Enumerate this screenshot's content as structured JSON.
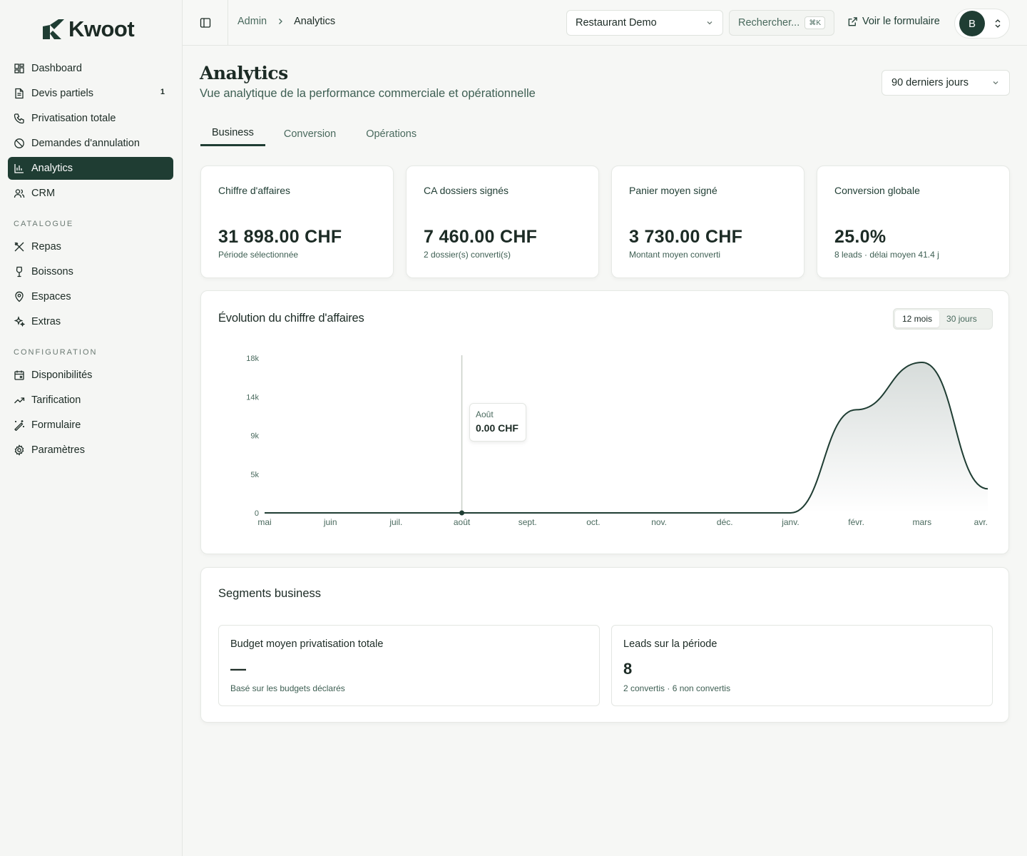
{
  "app": {
    "logo_text": "Kwoot"
  },
  "sidebar": {
    "items": [
      {
        "label": "Dashboard",
        "icon": "dashboard-icon"
      },
      {
        "label": "Devis partiels",
        "icon": "file-icon",
        "badge": "1"
      },
      {
        "label": "Privatisation totale",
        "icon": "phone-icon"
      },
      {
        "label": "Demandes d'annulation",
        "icon": "ban-icon"
      },
      {
        "label": "Analytics",
        "icon": "bar-chart-icon",
        "active": true
      },
      {
        "label": "CRM",
        "icon": "users-icon"
      }
    ],
    "catalogue_title": "CATALOGUE",
    "catalogue": [
      {
        "label": "Repas",
        "icon": "utensils-icon"
      },
      {
        "label": "Boissons",
        "icon": "wine-icon"
      },
      {
        "label": "Espaces",
        "icon": "map-pin-icon"
      },
      {
        "label": "Extras",
        "icon": "sparkles-icon"
      }
    ],
    "configuration_title": "CONFIGURATION",
    "configuration": [
      {
        "label": "Disponibilités",
        "icon": "calendar-icon"
      },
      {
        "label": "Tarification",
        "icon": "trending-up-icon"
      },
      {
        "label": "Formulaire",
        "icon": "wand-icon"
      },
      {
        "label": "Paramètres",
        "icon": "gear-icon"
      }
    ]
  },
  "topbar": {
    "breadcrumb_root": "Admin",
    "breadcrumb_current": "Analytics",
    "restaurant_select": "Restaurant Demo",
    "search_placeholder": "Rechercher...",
    "search_shortcut": "⌘K",
    "view_form_link": "Voir le formulaire",
    "avatar_initial": "B"
  },
  "page": {
    "title": "Analytics",
    "subtitle": "Vue analytique de la performance commerciale et opérationnelle",
    "period_select": "90 derniers jours",
    "tabs": [
      "Business",
      "Conversion",
      "Opérations"
    ],
    "active_tab": "Business"
  },
  "kpis": [
    {
      "label": "Chiffre d'affaires",
      "value": "31 898.00 CHF",
      "sub": "Période sélectionnée"
    },
    {
      "label": "CA dossiers signés",
      "value": "7 460.00 CHF",
      "sub": "2 dossier(s) converti(s)"
    },
    {
      "label": "Panier moyen signé",
      "value": "3 730.00 CHF",
      "sub": "Montant moyen converti"
    },
    {
      "label": "Conversion globale",
      "value": "25.0%",
      "sub": "8 leads · délai moyen 41.4 j"
    }
  ],
  "revenue_chart": {
    "title": "Évolution du chiffre d'affaires",
    "range_options": [
      "12 mois",
      "30 jours"
    ],
    "active_range": "12 mois",
    "tooltip_label": "Août",
    "tooltip_value": "0.00 CHF"
  },
  "chart_data": {
    "type": "area",
    "title": "Évolution du chiffre d'affaires",
    "categories": [
      "mai",
      "juin",
      "juil.",
      "août",
      "sept.",
      "oct.",
      "nov.",
      "déc.",
      "janv.",
      "févr.",
      "mars",
      "avr."
    ],
    "values": [
      0,
      0,
      0,
      0,
      0,
      0,
      0,
      0,
      0,
      12000,
      17500,
      2800
    ],
    "y_ticks": [
      "0",
      "5k",
      "9k",
      "14k",
      "18k"
    ],
    "ylim": [
      0,
      18000
    ],
    "grid": false,
    "highlight_index": 3
  },
  "segments": {
    "title": "Segments business",
    "cards": [
      {
        "label": "Budget moyen privatisation totale",
        "value": "—",
        "sub": "Basé sur les budgets déclarés"
      },
      {
        "label": "Leads sur la période",
        "value": "8",
        "sub": "2 convertis · 6 non convertis"
      }
    ]
  },
  "colors": {
    "brand": "#1f3d33",
    "line": "#1f3d33"
  }
}
